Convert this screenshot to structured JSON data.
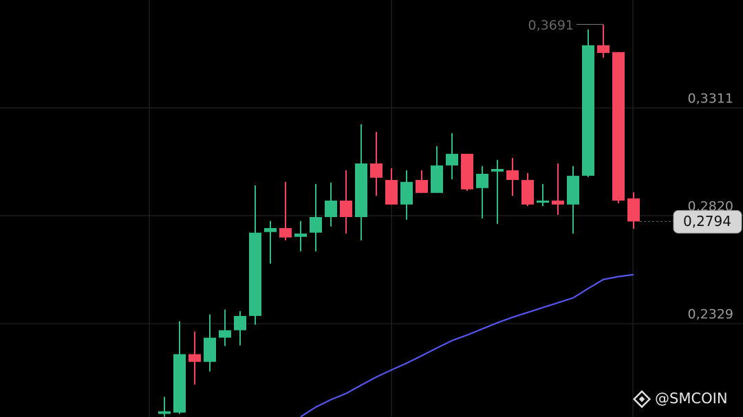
{
  "chart_data": {
    "type": "candlestick",
    "ylim": [
      0.1904,
      0.3802
    ],
    "yticks": [
      {
        "value": 0.3311,
        "label": "0,3311"
      },
      {
        "value": 0.282,
        "label": "0,2820"
      },
      {
        "value": 0.2329,
        "label": "0,2329"
      }
    ],
    "grid": true,
    "up_color": "#2ebd85",
    "down_color": "#f6465d",
    "open": [
      0.1918,
      0.1924,
      0.219,
      0.2155,
      0.2265,
      0.2299,
      0.2364,
      0.2746,
      0.2764,
      0.2724,
      0.2743,
      0.2814,
      0.2889,
      0.2814,
      0.3058,
      0.2983,
      0.2871,
      0.2983,
      0.2924,
      0.3049,
      0.3102,
      0.2946,
      0.3021,
      0.3027,
      0.2983,
      0.288,
      0.2889,
      0.2871,
      0.3002,
      0.3596,
      0.3565,
      0.2899
    ],
    "high": [
      0.1996,
      0.234,
      0.2293,
      0.2371,
      0.2393,
      0.2386,
      0.2958,
      0.2796,
      0.2974,
      0.2796,
      0.2964,
      0.2971,
      0.3027,
      0.3236,
      0.3202,
      0.3036,
      0.3027,
      0.3027,
      0.3136,
      0.3196,
      0.3102,
      0.3046,
      0.3074,
      0.3083,
      0.3014,
      0.2964,
      0.3058,
      0.3046,
      0.3668,
      0.3691,
      0.3565,
      0.2927
    ],
    "low": [
      0.1905,
      0.1918,
      0.2052,
      0.2111,
      0.2227,
      0.223,
      0.2324,
      0.2602,
      0.2708,
      0.2658,
      0.2658,
      0.2771,
      0.2739,
      0.2708,
      0.2911,
      0.2871,
      0.2802,
      0.2924,
      0.2924,
      0.2986,
      0.2933,
      0.2808,
      0.2783,
      0.2911,
      0.2864,
      0.2864,
      0.2824,
      0.2739,
      0.2996,
      0.354,
      0.2877,
      0.2761
    ],
    "close": [
      0.193,
      0.219,
      0.2155,
      0.2265,
      0.2299,
      0.2364,
      0.2743,
      0.2764,
      0.2721,
      0.2739,
      0.2814,
      0.2889,
      0.2814,
      0.3058,
      0.2993,
      0.2871,
      0.2974,
      0.2924,
      0.3049,
      0.3102,
      0.294,
      0.3011,
      0.3033,
      0.2983,
      0.2871,
      0.2889,
      0.2871,
      0.3002,
      0.3596,
      0.3561,
      0.2889,
      0.2794
    ],
    "overlay": {
      "color": "#5656ee",
      "values": [
        null,
        null,
        null,
        null,
        null,
        null,
        null,
        null,
        null,
        0.1905,
        0.1949,
        0.1983,
        0.2011,
        0.2049,
        0.2086,
        0.2118,
        0.2149,
        0.2183,
        0.2218,
        0.2252,
        0.2277,
        0.2305,
        0.2333,
        0.2358,
        0.238,
        0.2402,
        0.2424,
        0.2446,
        0.2489,
        0.253,
        0.2543,
        0.2552
      ]
    },
    "high_marker": {
      "value": 0.3691,
      "label": "0,3691"
    },
    "last_price": {
      "value": 0.2794,
      "label": "0,2794"
    },
    "watermark": "@SMCOIN"
  }
}
